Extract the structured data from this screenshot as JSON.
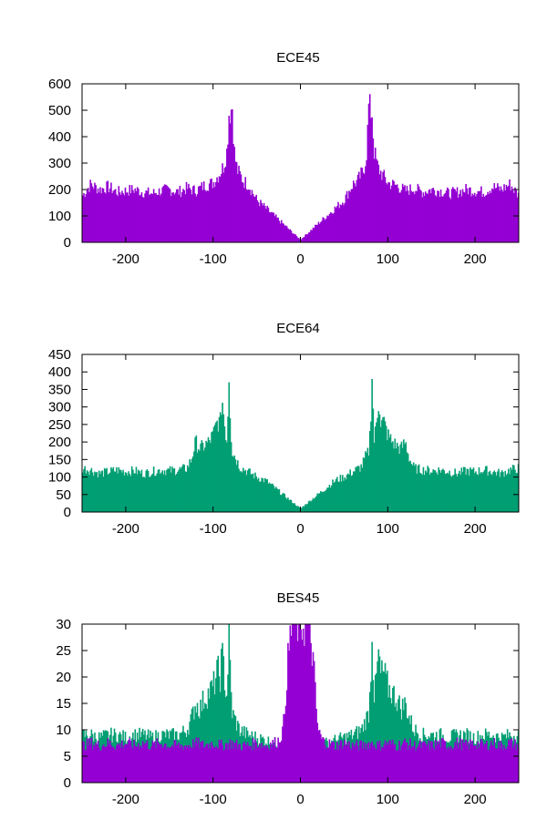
{
  "chart_data": [
    {
      "type": "bar",
      "title": "ECE45",
      "xlim": [
        -250,
        250
      ],
      "ylim": [
        0,
        600
      ],
      "xticks": [
        -200,
        -100,
        0,
        100,
        200
      ],
      "yticks": [
        0,
        100,
        200,
        300,
        400,
        500,
        600
      ],
      "grid": false,
      "legend": "none",
      "series": [
        {
          "color": "#9400d3",
          "x": [
            -250,
            -240,
            -230,
            -220,
            -210,
            -200,
            -190,
            -180,
            -170,
            -160,
            -150,
            -140,
            -130,
            -120,
            -110,
            -100,
            -95,
            -90,
            -88,
            -86,
            -84,
            -82,
            -80,
            -78,
            -76,
            -74,
            -72,
            -70,
            -65,
            -60,
            -55,
            -50,
            -40,
            -30,
            -20,
            -10,
            0,
            10,
            20,
            30,
            40,
            50,
            55,
            60,
            65,
            70,
            72,
            74,
            76,
            78,
            80,
            82,
            84,
            86,
            88,
            90,
            95,
            100,
            110,
            120,
            130,
            140,
            150,
            160,
            170,
            180,
            190,
            200,
            210,
            220,
            230,
            240,
            250
          ],
          "values": [
            175,
            220,
            200,
            210,
            190,
            195,
            200,
            190,
            185,
            195,
            200,
            190,
            205,
            195,
            215,
            225,
            250,
            275,
            290,
            320,
            350,
            490,
            500,
            515,
            350,
            300,
            270,
            260,
            230,
            220,
            190,
            160,
            130,
            100,
            70,
            40,
            10,
            40,
            70,
            100,
            130,
            160,
            190,
            220,
            230,
            260,
            270,
            300,
            350,
            515,
            500,
            490,
            350,
            320,
            290,
            275,
            250,
            225,
            215,
            195,
            205,
            190,
            200,
            195,
            185,
            190,
            200,
            195,
            190,
            210,
            200,
            220,
            175
          ]
        }
      ]
    },
    {
      "type": "bar",
      "title": "ECE64",
      "xlim": [
        -250,
        250
      ],
      "ylim": [
        0,
        450
      ],
      "xticks": [
        -200,
        -100,
        0,
        100,
        200
      ],
      "yticks": [
        0,
        50,
        100,
        150,
        200,
        250,
        300,
        350,
        400,
        450
      ],
      "grid": false,
      "legend": "none",
      "series": [
        {
          "color": "#009e73",
          "x": [
            -250,
            -240,
            -230,
            -220,
            -210,
            -200,
            -190,
            -180,
            -170,
            -160,
            -150,
            -140,
            -130,
            -125,
            -120,
            -115,
            -110,
            -105,
            -100,
            -95,
            -92,
            -90,
            -88,
            -86,
            -84,
            -82,
            -80,
            -78,
            -75,
            -70,
            -60,
            -50,
            -40,
            -30,
            -20,
            -10,
            0,
            10,
            20,
            30,
            40,
            50,
            60,
            70,
            75,
            78,
            80,
            82,
            84,
            86,
            88,
            90,
            92,
            95,
            100,
            105,
            110,
            115,
            120,
            125,
            130,
            140,
            150,
            160,
            170,
            180,
            190,
            200,
            210,
            220,
            230,
            240,
            250
          ],
          "values": [
            125,
            120,
            110,
            115,
            120,
            115,
            118,
            110,
            115,
            120,
            118,
            120,
            125,
            150,
            200,
            180,
            190,
            200,
            220,
            260,
            250,
            330,
            280,
            230,
            200,
            405,
            240,
            170,
            160,
            130,
            115,
            100,
            90,
            70,
            50,
            30,
            10,
            30,
            50,
            70,
            90,
            100,
            115,
            130,
            160,
            170,
            240,
            405,
            200,
            230,
            280,
            330,
            250,
            260,
            220,
            200,
            190,
            180,
            200,
            150,
            125,
            120,
            118,
            120,
            115,
            110,
            118,
            115,
            120,
            115,
            110,
            120,
            125
          ]
        }
      ]
    },
    {
      "type": "bar",
      "title": "BES45",
      "xlim": [
        -250,
        250
      ],
      "ylim": [
        0,
        30
      ],
      "xticks": [
        -200,
        -100,
        0,
        100,
        200
      ],
      "yticks": [
        0,
        5,
        10,
        15,
        20,
        25,
        30
      ],
      "grid": false,
      "legend": "none",
      "series": [
        {
          "color": "#009e73",
          "x": [
            -250,
            -240,
            -230,
            -220,
            -210,
            -200,
            -190,
            -180,
            -170,
            -160,
            -150,
            -140,
            -130,
            -125,
            -120,
            -115,
            -110,
            -105,
            -100,
            -95,
            -92,
            -90,
            -88,
            -86,
            -84,
            -82,
            -80,
            -78,
            -75,
            -70,
            -60,
            -50,
            -40,
            -30,
            -20,
            -10,
            0,
            10,
            20,
            30,
            40,
            50,
            60,
            70,
            75,
            78,
            80,
            82,
            84,
            86,
            88,
            90,
            92,
            95,
            100,
            105,
            110,
            115,
            120,
            125,
            130,
            140,
            150,
            160,
            170,
            180,
            190,
            200,
            210,
            220,
            230,
            240,
            250
          ],
          "values": [
            9,
            9,
            8.5,
            9,
            9,
            8.5,
            9,
            9,
            8.5,
            9,
            9,
            9,
            10,
            12,
            15,
            14,
            16,
            17,
            18,
            21,
            20,
            24,
            22,
            18,
            16,
            30,
            18,
            13,
            12,
            10,
            9,
            8.5,
            8,
            7.5,
            7,
            7,
            7,
            7,
            7,
            7.5,
            8,
            8.5,
            9,
            10,
            12,
            13,
            18,
            30,
            16,
            18,
            22,
            24,
            20,
            21,
            18,
            17,
            16,
            14,
            15,
            12,
            10,
            9,
            9,
            9,
            8.5,
            9,
            9,
            8.5,
            9,
            9,
            8.5,
            9,
            9
          ]
        },
        {
          "color": "#9400d3",
          "x": [
            -250,
            -240,
            -230,
            -220,
            -210,
            -200,
            -190,
            -180,
            -170,
            -160,
            -150,
            -140,
            -130,
            -120,
            -110,
            -100,
            -90,
            -80,
            -70,
            -60,
            -50,
            -40,
            -30,
            -25,
            -20,
            -18,
            -15,
            -12,
            -10,
            -5,
            0,
            5,
            10,
            12,
            15,
            18,
            20,
            25,
            30,
            40,
            50,
            60,
            70,
            80,
            90,
            100,
            110,
            120,
            130,
            140,
            150,
            160,
            170,
            180,
            190,
            200,
            210,
            220,
            230,
            240,
            250
          ],
          "values": [
            7,
            7.5,
            7,
            7.5,
            7,
            7.5,
            7,
            7.5,
            7,
            7.5,
            7,
            7,
            7,
            7.5,
            7,
            7.5,
            7,
            7.5,
            7,
            7,
            7.5,
            7,
            7.5,
            8,
            10,
            14,
            22,
            27,
            30,
            30,
            30,
            30,
            30,
            27,
            22,
            14,
            10,
            8,
            7.5,
            7,
            7.5,
            7,
            7,
            7.5,
            7,
            7.5,
            7,
            7.5,
            7,
            7,
            7,
            7.5,
            7,
            7.5,
            7,
            7.5,
            7,
            7.5,
            7,
            7.5,
            7
          ]
        }
      ]
    }
  ]
}
